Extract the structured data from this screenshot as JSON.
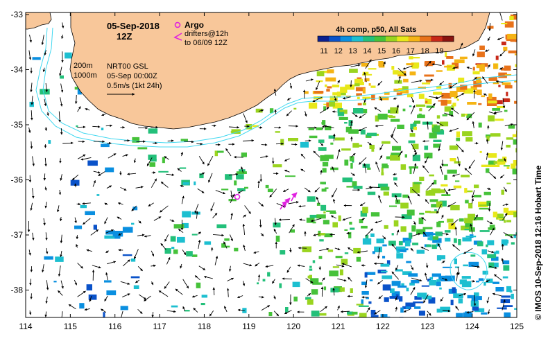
{
  "map": {
    "date_line": "05-Sep-2018",
    "hour_line": "12Z",
    "argo_label": "Argo",
    "drifters_label": "drifters@12h",
    "drifters_date": "to 06/09 12Z",
    "isobath_200": "200m",
    "isobath_1000": "1000m",
    "product_name": "NRT00 GSL",
    "product_time": "05-Sep 00:00Z",
    "velocity_scale": "0.5m/s (1kt 24h)",
    "colorbar_title": "4h comp, p50, All Sats",
    "colorbar_ticks": [
      "11",
      "12",
      "13",
      "14",
      "15",
      "16",
      "17",
      "18",
      "19"
    ],
    "colorbar_colors": [
      "#0b1f8f",
      "#0a52c9",
      "#0a8fe0",
      "#1dbfd0",
      "#23c07a",
      "#46c23a",
      "#9ad41f",
      "#e8e81a",
      "#f5b414",
      "#e8721a",
      "#c82818",
      "#8a1410"
    ],
    "credit": "IMOS 10-Sep-2018 12:16 Hobart Time",
    "y_ticks": [
      "-33",
      "-34",
      "-35",
      "-36",
      "-37",
      "-38"
    ],
    "x_ticks": [
      "114",
      "115",
      "116",
      "117",
      "118",
      "119",
      "120",
      "121",
      "122",
      "123",
      "124",
      "125"
    ],
    "land_color": "#f8c79a",
    "argo_color": "#e020e0",
    "contour_color": "#40d8f0"
  }
}
